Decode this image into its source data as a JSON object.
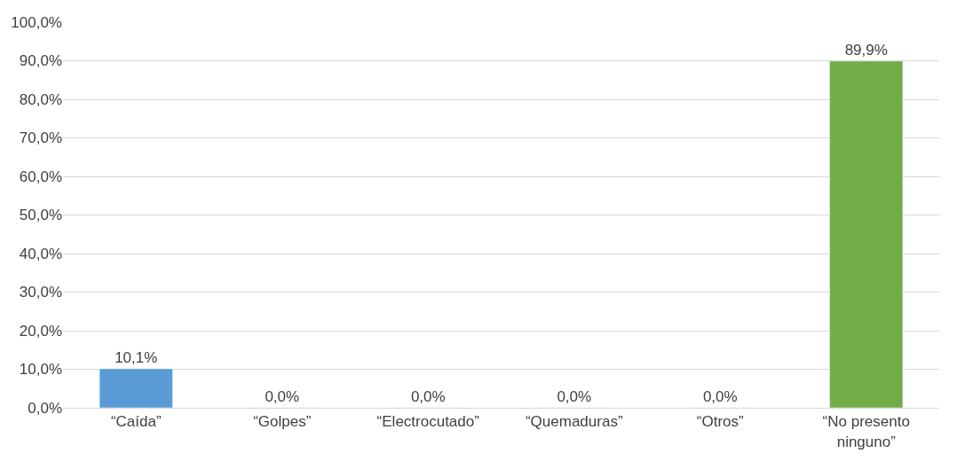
{
  "chart_data": {
    "type": "bar",
    "categories": [
      "“Caída”",
      "“Golpes”",
      "“Electrocutado”",
      "“Quemaduras”",
      "“Otros”",
      "“No presento ninguno”"
    ],
    "values": [
      10.1,
      0,
      0,
      0,
      0,
      89.9
    ],
    "colors": [
      "#5b9bd5",
      null,
      null,
      null,
      null,
      "#70ad47"
    ],
    "value_labels": [
      "10,1%",
      "0,0%",
      "0,0%",
      "0,0%",
      "0,0%",
      "89,9%"
    ],
    "ylim": [
      0,
      100
    ],
    "yticks": [
      {
        "value": 0,
        "label": "0,0%"
      },
      {
        "value": 10,
        "label": "10,0%"
      },
      {
        "value": 20,
        "label": "20,0%"
      },
      {
        "value": 30,
        "label": "30,0%"
      },
      {
        "value": 40,
        "label": "40,0%"
      },
      {
        "value": 50,
        "label": "50,0%"
      },
      {
        "value": 60,
        "label": "60,0%"
      },
      {
        "value": 70,
        "label": "70,0%"
      },
      {
        "value": 80,
        "label": "80,0%"
      },
      {
        "value": 90,
        "label": "90,0%"
      },
      {
        "value": 100,
        "label": "100,0%"
      }
    ],
    "grid": "y",
    "legend": false
  }
}
